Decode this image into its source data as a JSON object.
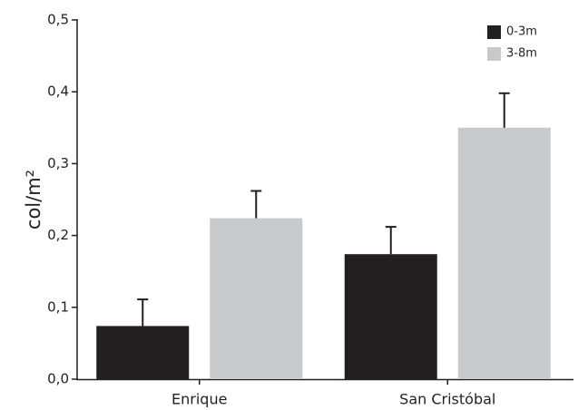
{
  "chart_data": {
    "type": "bar",
    "y_label": "col/m²",
    "categories": [
      "Enrique",
      "San Cristóbal"
    ],
    "series": [
      {
        "name": "0-3m",
        "color": "#231f20",
        "values": [
          0.074,
          0.174
        ],
        "errors": [
          0.037,
          0.038
        ]
      },
      {
        "name": "3-8m",
        "color": "#c8c9cb",
        "values": [
          0.224,
          0.35
        ],
        "errors": [
          0.038,
          0.048
        ]
      }
    ],
    "ylim": [
      0,
      0.5
    ],
    "yticks": [
      {
        "value": 0,
        "label": "0,0"
      },
      {
        "value": 0.1,
        "label": "0,1"
      },
      {
        "value": 0.2,
        "label": "0,2"
      },
      {
        "value": 0.3,
        "label": "0,3"
      },
      {
        "value": 0.4,
        "label": "0,4"
      },
      {
        "value": 0.5,
        "label": "0,5"
      }
    ],
    "grid": false,
    "legend": "top-right"
  }
}
